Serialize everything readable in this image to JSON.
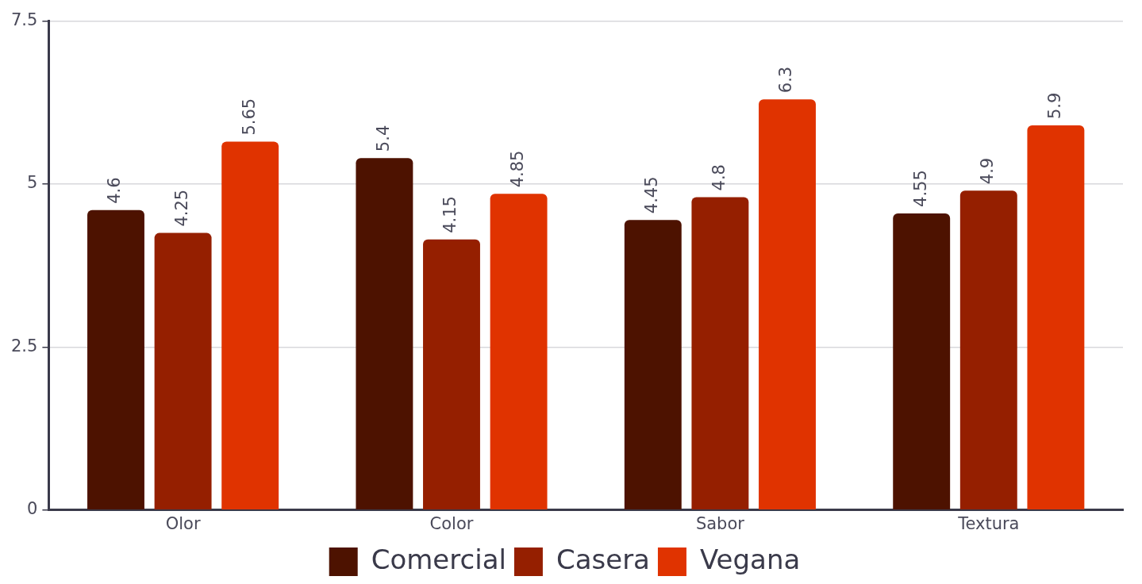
{
  "chart_data": {
    "type": "bar",
    "categories": [
      "Olor",
      "Color",
      "Sabor",
      "Textura"
    ],
    "series": [
      {
        "name": "Comercial",
        "color": "#4d1200",
        "values": [
          4.6,
          5.4,
          4.45,
          4.55
        ]
      },
      {
        "name": "Casera",
        "color": "#951f00",
        "values": [
          4.25,
          4.15,
          4.8,
          4.9
        ]
      },
      {
        "name": "Vegana",
        "color": "#e03300",
        "values": [
          5.65,
          4.85,
          6.3,
          5.9
        ]
      }
    ],
    "ylim": [
      0,
      7.5
    ],
    "yticks": [
      0,
      2.5,
      5,
      7.5
    ],
    "grid": "y",
    "legend": "bottom",
    "data_labels": true
  }
}
